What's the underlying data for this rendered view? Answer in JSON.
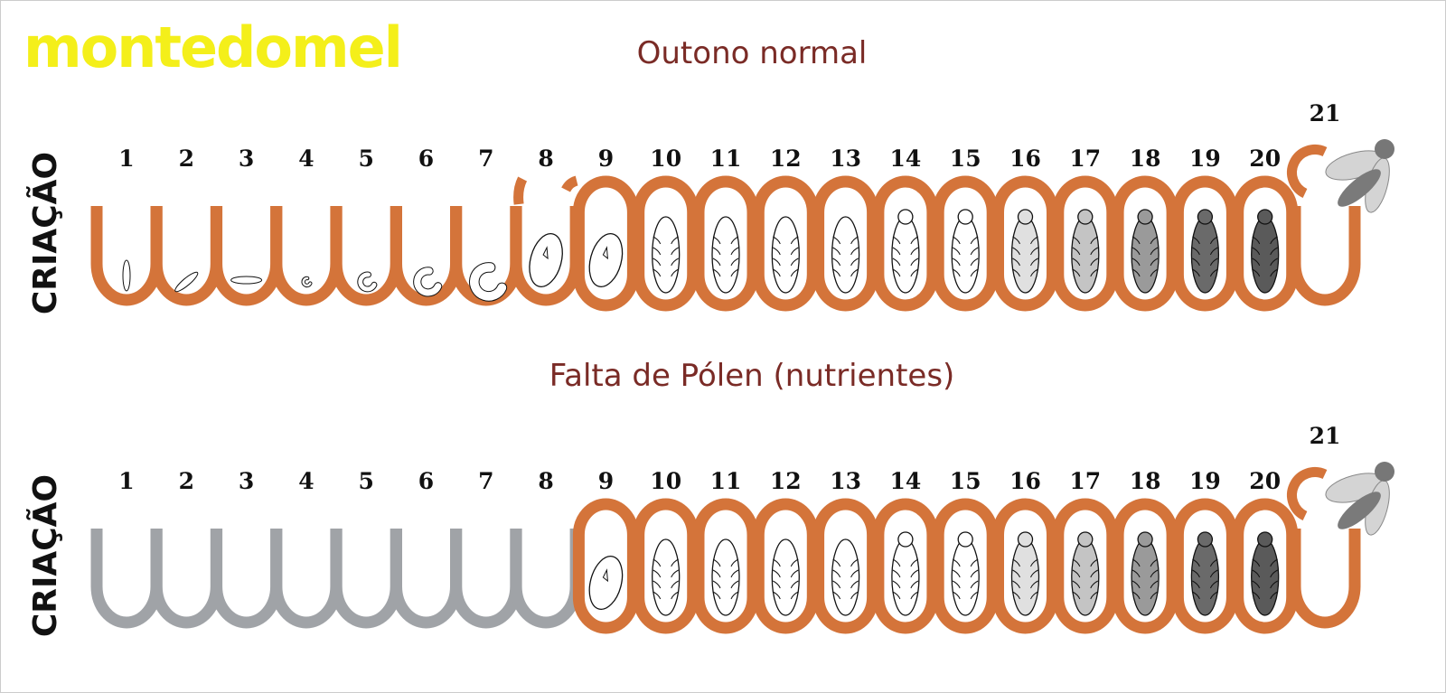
{
  "brand": "montedomel",
  "panels": [
    {
      "title": "Outono normal",
      "side_label": "CRIAÇÃO",
      "days": [
        1,
        2,
        3,
        4,
        5,
        6,
        7,
        8,
        9,
        10,
        11,
        12,
        13,
        14,
        15,
        16,
        17,
        18,
        19,
        20,
        21
      ],
      "open_cell_color": "#d4743a",
      "capped_cell_color": "#d4743a"
    },
    {
      "title": "Falta de Pólen (nutrientes)",
      "side_label": "CRIAÇÃO",
      "days": [
        1,
        2,
        3,
        4,
        5,
        6,
        7,
        8,
        9,
        10,
        11,
        12,
        13,
        14,
        15,
        16,
        17,
        18,
        19,
        20,
        21
      ],
      "open_cell_color": "#a0a3a7",
      "capped_cell_color": "#d4743a"
    }
  ]
}
